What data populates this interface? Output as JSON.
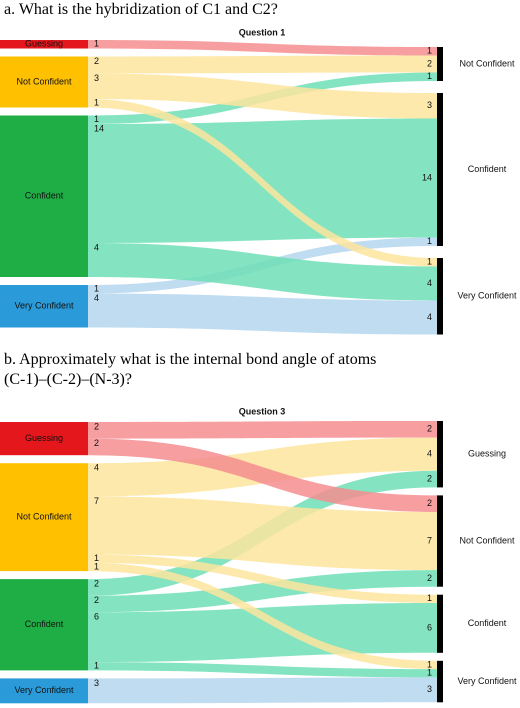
{
  "chart_data": [
    {
      "type": "sankey",
      "caption": "a. What is the hybridization of C1 and C2?",
      "title": "Question 1",
      "left_nodes": [
        {
          "name": "Guessing",
          "color": "#e3171c",
          "text_color": "#ffffff",
          "link_color": "#f58d8f"
        },
        {
          "name": "Not Confident",
          "color": "#ffc000",
          "text_color": "#222222",
          "link_color": "#fde59e"
        },
        {
          "name": "Confident",
          "color": "#1fae46",
          "text_color": "#111111",
          "link_color": "#6fdfb6"
        },
        {
          "name": "Very Confident",
          "color": "#2a9bd8",
          "text_color": "#111111",
          "link_color": "#b5d6ee"
        }
      ],
      "right_nodes": [
        "Not Confident",
        "Confident",
        "Very Confident"
      ],
      "links": [
        {
          "source": 0,
          "target": 0,
          "value": 1
        },
        {
          "source": 1,
          "target": 0,
          "value": 2
        },
        {
          "source": 2,
          "target": 0,
          "value": 1
        },
        {
          "source": 1,
          "target": 1,
          "value": 3
        },
        {
          "source": 2,
          "target": 1,
          "value": 14
        },
        {
          "source": 3,
          "target": 1,
          "value": 1
        },
        {
          "source": 1,
          "target": 2,
          "value": 1
        },
        {
          "source": 2,
          "target": 2,
          "value": 4
        },
        {
          "source": 3,
          "target": 2,
          "value": 4
        }
      ]
    },
    {
      "type": "sankey",
      "caption": "b. Approximately what is the internal bond angle of atoms (C-1)–(C-2)–(N-3)?",
      "title": "Question 3",
      "left_nodes": [
        {
          "name": "Guessing",
          "color": "#e3171c",
          "text_color": "#ffffff",
          "link_color": "#f58d8f"
        },
        {
          "name": "Not Confident",
          "color": "#ffc000",
          "text_color": "#222222",
          "link_color": "#fde59e"
        },
        {
          "name": "Confident",
          "color": "#1fae46",
          "text_color": "#111111",
          "link_color": "#6fdfb6"
        },
        {
          "name": "Very Confident",
          "color": "#2a9bd8",
          "text_color": "#111111",
          "link_color": "#b5d6ee"
        }
      ],
      "right_nodes": [
        "Guessing",
        "Not Confident",
        "Confident",
        "Very Confident"
      ],
      "links": [
        {
          "source": 0,
          "target": 0,
          "value": 2
        },
        {
          "source": 1,
          "target": 0,
          "value": 4
        },
        {
          "source": 2,
          "target": 0,
          "value": 2
        },
        {
          "source": 0,
          "target": 1,
          "value": 2
        },
        {
          "source": 1,
          "target": 1,
          "value": 7
        },
        {
          "source": 2,
          "target": 1,
          "value": 2
        },
        {
          "source": 1,
          "target": 2,
          "value": 1
        },
        {
          "source": 2,
          "target": 2,
          "value": 6
        },
        {
          "source": 1,
          "target": 3,
          "value": 1
        },
        {
          "source": 2,
          "target": 3,
          "value": 1
        },
        {
          "source": 3,
          "target": 3,
          "value": 3
        }
      ]
    }
  ]
}
